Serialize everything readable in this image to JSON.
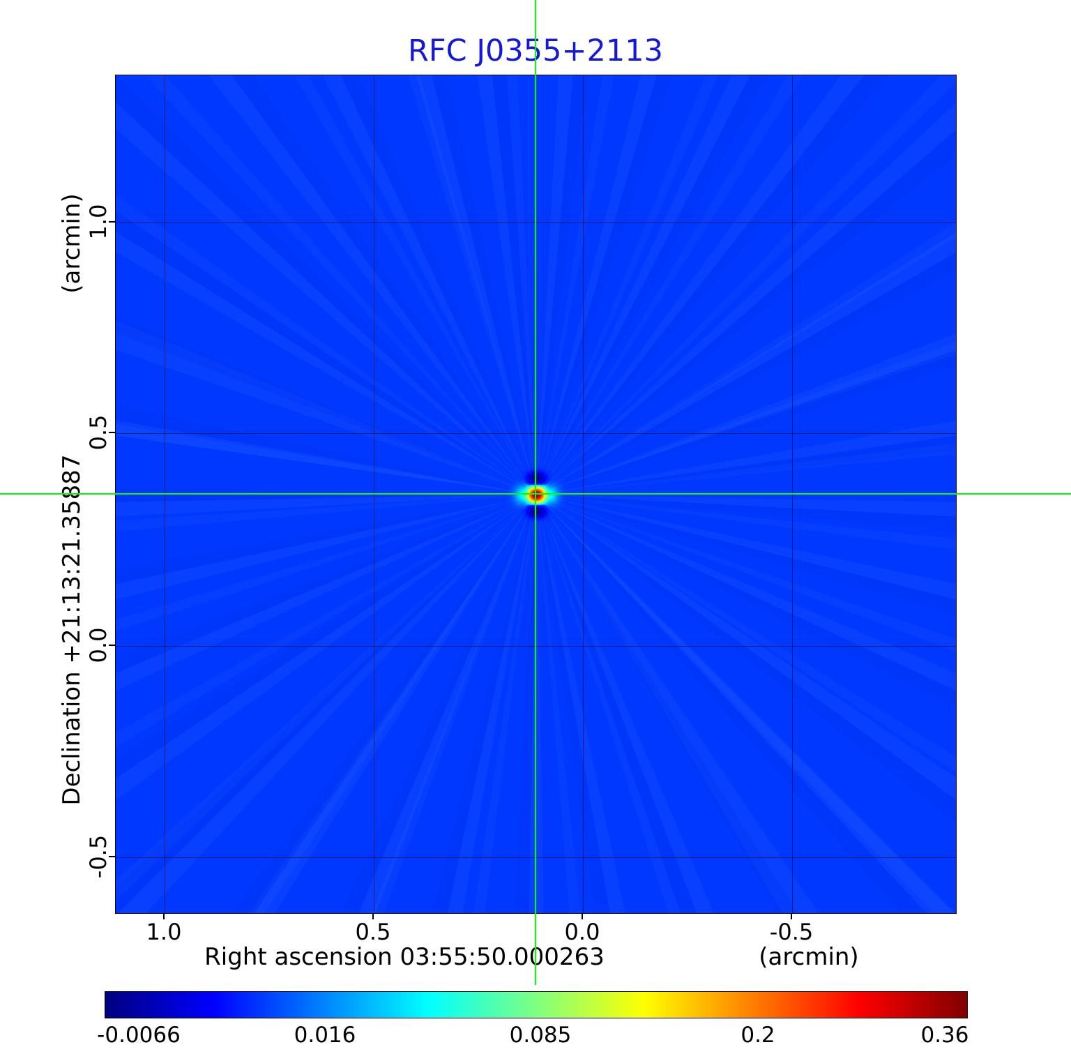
{
  "title": "RFC J0355+2113",
  "axes": {
    "x_label": "Right ascension  03:55:50.000263",
    "x_unit": "(arcmin)",
    "y_label": "Declination  +21:13:21.35887",
    "y_unit": "(arcmin)",
    "x_tick_labels": [
      "1.0",
      "0.5",
      "0.0",
      "-0.5"
    ],
    "y_tick_labels": [
      "1.0",
      "0.5",
      "0.0",
      "-0.5"
    ]
  },
  "colorbar": {
    "tick_labels": [
      "-0.0066",
      "0.016",
      "0.085",
      "0.2",
      "0.36"
    ]
  },
  "colors": {
    "title": "#1318dc",
    "crosshair": "#00ff00",
    "map_background": "#0038ff",
    "colormap": "jet"
  },
  "chart_data": {
    "type": "heatmap",
    "title": "RFC J0355+2113",
    "xlabel": "Right ascension  03:55:50.000263",
    "xunit": "(arcmin)",
    "ylabel": "Declination  +21:13:21.35887",
    "yunit": "(arcmin)",
    "x_ticks": [
      1.0,
      0.5,
      0.0,
      -0.5
    ],
    "y_ticks": [
      1.0,
      0.5,
      0.0,
      -0.5
    ],
    "x_range_arcmin": [
      1.117,
      -0.892
    ],
    "y_range_arcmin": [
      -0.628,
      1.341
    ],
    "x_axis_reversed": true,
    "grid": true,
    "colormap": "jet",
    "color_scale_ticks": [
      -0.0066,
      0.016,
      0.085,
      0.2,
      0.36
    ],
    "background_level": 0.0,
    "source": {
      "ra_offset_arcmin": 0.112,
      "dec_offset_arcmin": 0.356,
      "peak": 0.36,
      "crosshair_marked": true
    },
    "legend_position": "colorbar-bottom"
  }
}
